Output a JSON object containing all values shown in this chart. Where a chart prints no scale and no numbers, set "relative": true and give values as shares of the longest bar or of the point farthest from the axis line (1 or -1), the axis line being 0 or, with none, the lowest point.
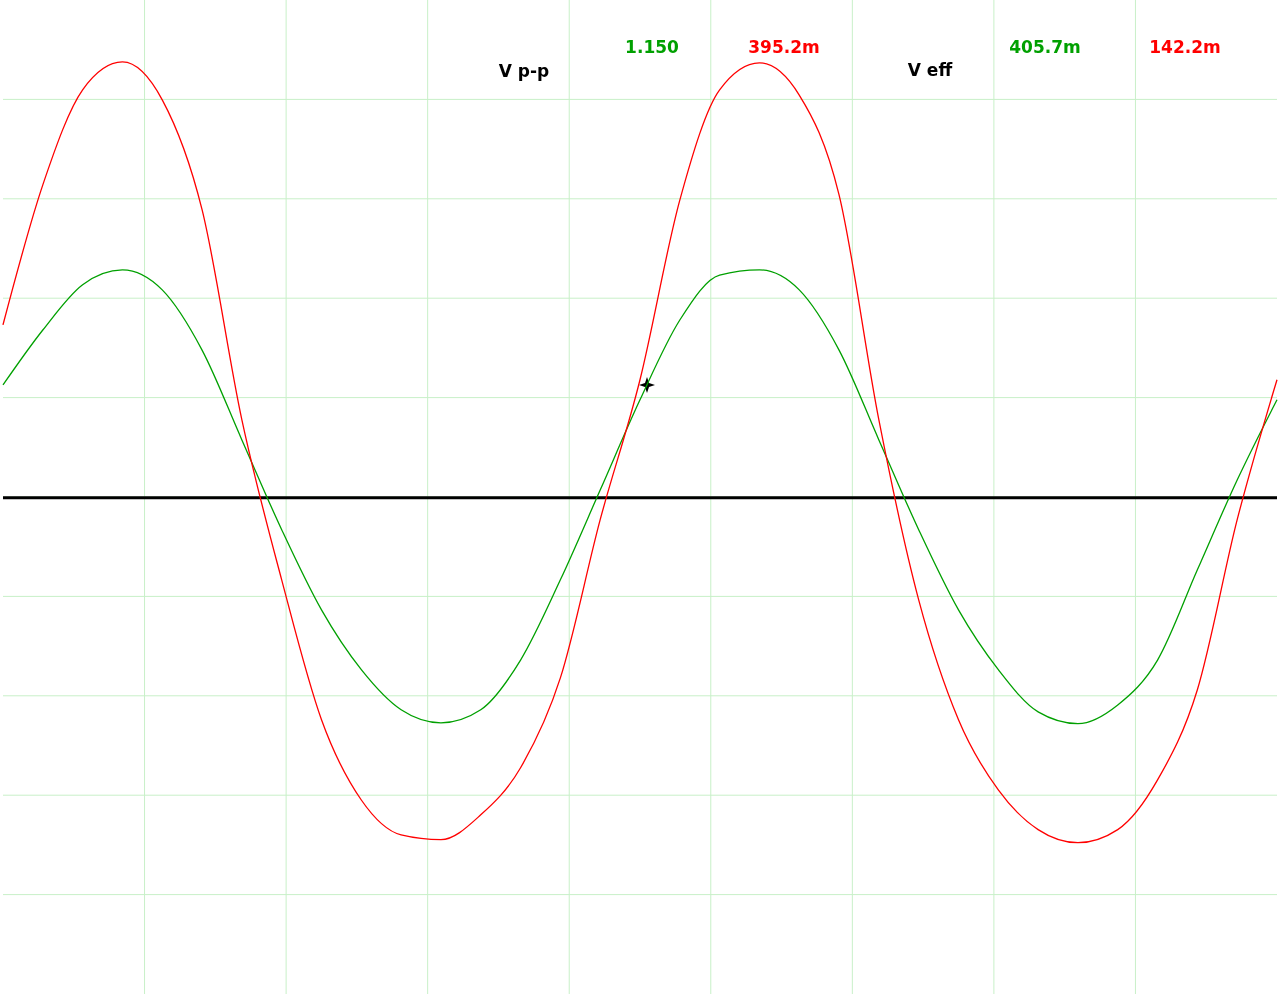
{
  "chart_data": {
    "type": "line",
    "relative": true,
    "grid": true,
    "marker": "none",
    "line_style": "solid",
    "categories": [
      null,
      null,
      null,
      null,
      null,
      null,
      null,
      null,
      null,
      null,
      null,
      null,
      null,
      null,
      null,
      null,
      null,
      null,
      null,
      null,
      null,
      null,
      null,
      null,
      null,
      null,
      null,
      null,
      null,
      null,
      null,
      null,
      null
    ],
    "series": [
      {
        "color": "#00a000",
        "values": [
          0.259,
          0.385,
          0.489,
          0.523,
          0.477,
          0.339,
          0.133,
          -0.073,
          -0.257,
          -0.394,
          -0.486,
          -0.516,
          -0.486,
          -0.372,
          -0.188,
          0.018,
          0.225,
          0.408,
          0.511,
          0.523,
          0.477,
          0.339,
          0.133,
          -0.073,
          -0.257,
          -0.394,
          -0.491,
          -0.518,
          -0.475,
          -0.372,
          -0.165,
          0.041,
          0.225
        ]
      },
      {
        "color": "#ff0000",
        "values": [
          0.397,
          0.718,
          0.936,
          1,
          0.913,
          0.661,
          0.179,
          -0.188,
          -0.509,
          -0.693,
          -0.773,
          -0.784,
          -0.727,
          -0.619,
          -0.413,
          -0.05,
          0.271,
          0.683,
          0.936,
          0.998,
          0.924,
          0.695,
          0.179,
          -0.234,
          -0.509,
          -0.67,
          -0.761,
          -0.791,
          -0.761,
          -0.647,
          -0.44,
          -0.05,
          0.271
        ]
      }
    ],
    "ref_lines": [
      {
        "axis": "y",
        "value": 0,
        "color": "#000000"
      }
    ],
    "annotations": [
      "V p-p",
      "1.150",
      "395.2m",
      "V eff",
      "405.7m",
      "142.2m"
    ]
  }
}
